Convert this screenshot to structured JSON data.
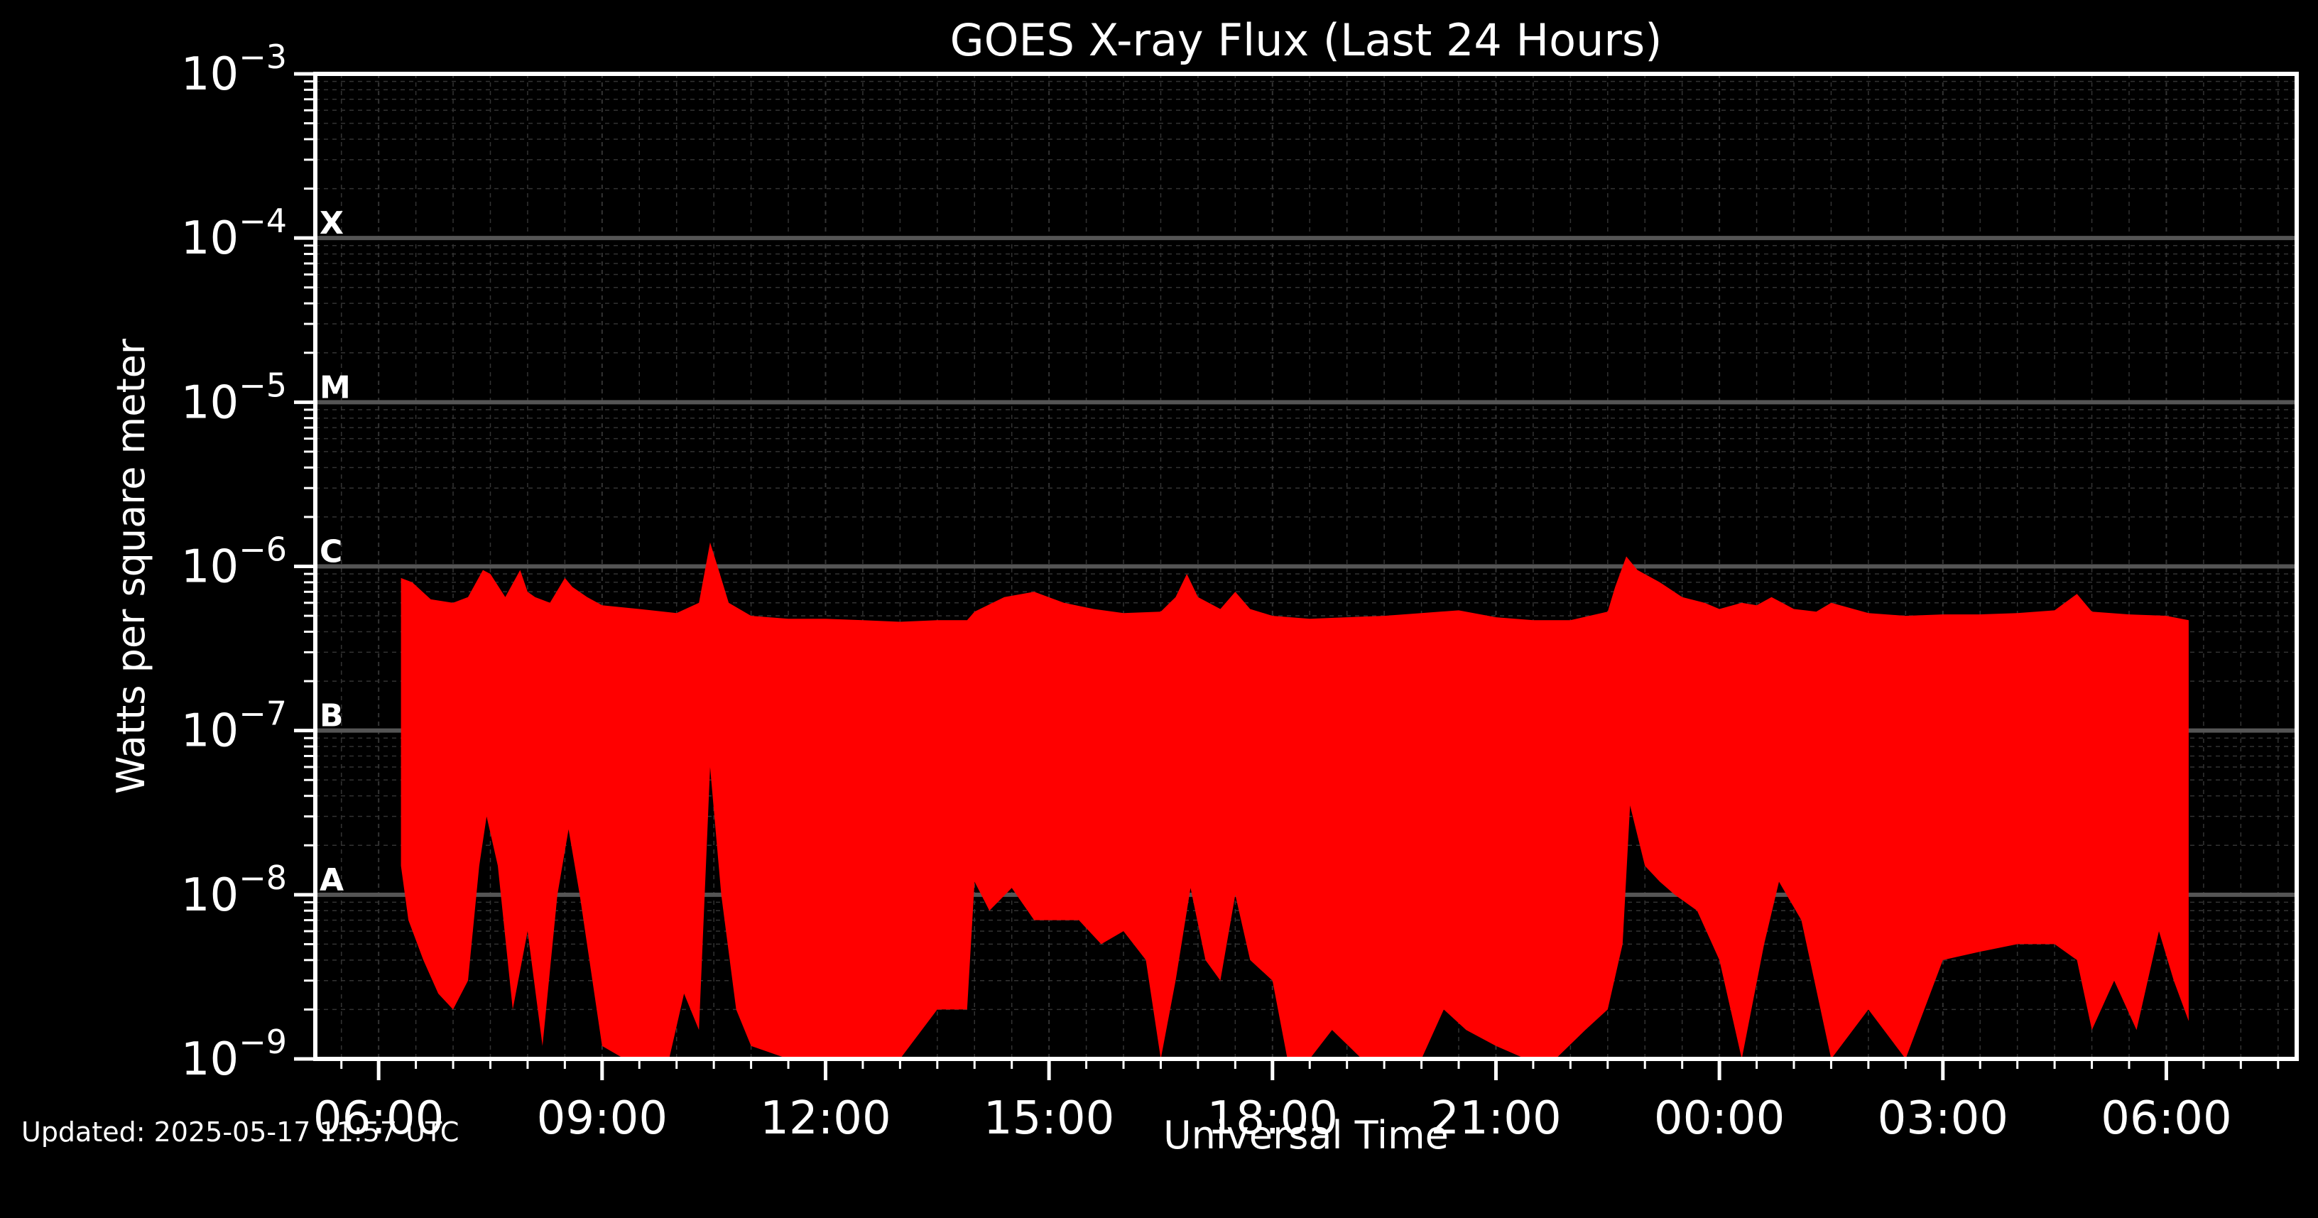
{
  "chart_data": {
    "type": "area",
    "title": "GOES X-ray Flux (Last 24 Hours)",
    "xlabel": "Universal Time",
    "ylabel": "Watts per square meter",
    "y_scale": "log",
    "ylim": [
      1e-09,
      0.001
    ],
    "x_unit": "hours since 2025-05-16 00:00 UTC",
    "xlim": [
      5.15,
      31.75
    ],
    "x_ticks": [
      {
        "x": 6,
        "label": "06:00"
      },
      {
        "x": 9,
        "label": "09:00"
      },
      {
        "x": 12,
        "label": "12:00"
      },
      {
        "x": 15,
        "label": "15:00"
      },
      {
        "x": 18,
        "label": "18:00"
      },
      {
        "x": 21,
        "label": "21:00"
      },
      {
        "x": 24,
        "label": "00:00"
      },
      {
        "x": 27,
        "label": "03:00"
      },
      {
        "x": 30,
        "label": "06:00"
      }
    ],
    "y_ticks": [
      {
        "exp": -9,
        "base": "10",
        "sup": "−9"
      },
      {
        "exp": -8,
        "base": "10",
        "sup": "−8"
      },
      {
        "exp": -7,
        "base": "10",
        "sup": "−7"
      },
      {
        "exp": -6,
        "base": "10",
        "sup": "−6"
      },
      {
        "exp": -5,
        "base": "10",
        "sup": "−5"
      },
      {
        "exp": -4,
        "base": "10",
        "sup": "−4"
      },
      {
        "exp": -3,
        "base": "10",
        "sup": "−3"
      }
    ],
    "flare_classes": [
      {
        "label": "A",
        "value": 1e-08
      },
      {
        "label": "B",
        "value": 1e-07
      },
      {
        "label": "C",
        "value": 1e-06
      },
      {
        "label": "M",
        "value": 1e-05
      },
      {
        "label": "X",
        "value": 0.0001
      }
    ],
    "grid": true,
    "colors": {
      "fill": "#ff0000",
      "background": "#000000",
      "axes": "#ffffff",
      "class_lines": "#555555",
      "grid": "#333333"
    },
    "series": [
      {
        "upper": {
          "x": [
            6.3,
            6.45,
            6.7,
            7.0,
            7.2,
            7.4,
            7.5,
            7.7,
            7.9,
            8.0,
            8.1,
            8.3,
            8.5,
            8.6,
            8.8,
            9.0,
            9.5,
            10.0,
            10.3,
            10.45,
            10.55,
            10.7,
            11.0,
            11.5,
            12.0,
            12.5,
            13.0,
            13.5,
            13.9,
            14.0,
            14.4,
            14.8,
            15.2,
            15.6,
            16.0,
            16.5,
            16.7,
            16.85,
            17.0,
            17.3,
            17.5,
            17.7,
            18.0,
            18.5,
            19.0,
            19.5,
            20.0,
            20.5,
            21.0,
            21.5,
            22.0,
            22.5,
            22.6,
            22.75,
            22.9,
            23.2,
            23.5,
            23.8,
            24.0,
            24.3,
            24.5,
            24.7,
            25.0,
            25.3,
            25.5,
            26.0,
            26.5,
            27.0,
            27.5,
            28.0,
            28.5,
            28.8,
            29.0,
            29.5,
            30.0,
            30.3
          ],
          "y": [
            8.5e-07,
            8e-07,
            6.3e-07,
            6e-07,
            6.5e-07,
            9.5e-07,
            9e-07,
            6.5e-07,
            9.5e-07,
            7e-07,
            6.5e-07,
            6e-07,
            8.5e-07,
            7.5e-07,
            6.5e-07,
            5.8e-07,
            5.5e-07,
            5.2e-07,
            6e-07,
            1.4e-06,
            1e-06,
            6e-07,
            5e-07,
            4.8e-07,
            4.8e-07,
            4.7e-07,
            4.6e-07,
            4.7e-07,
            4.7e-07,
            5.3e-07,
            6.5e-07,
            7e-07,
            6e-07,
            5.5e-07,
            5.2e-07,
            5.3e-07,
            6.5e-07,
            9e-07,
            6.5e-07,
            5.5e-07,
            7e-07,
            5.5e-07,
            5e-07,
            4.8e-07,
            4.9e-07,
            5e-07,
            5.2e-07,
            5.4e-07,
            4.9e-07,
            4.7e-07,
            4.7e-07,
            5.3e-07,
            7.5e-07,
            1.15e-06,
            9.5e-07,
            8e-07,
            6.5e-07,
            6e-07,
            5.5e-07,
            6e-07,
            5.8e-07,
            6.5e-07,
            5.5e-07,
            5.3e-07,
            6e-07,
            5.2e-07,
            5e-07,
            5.1e-07,
            5.1e-07,
            5.2e-07,
            5.4e-07,
            6.8e-07,
            5.3e-07,
            5.1e-07,
            5e-07,
            4.7e-07
          ]
        },
        "lower": {
          "x": [
            6.3,
            6.4,
            6.6,
            6.8,
            7.0,
            7.2,
            7.35,
            7.45,
            7.6,
            7.8,
            8.0,
            8.2,
            8.4,
            8.55,
            8.7,
            9.0,
            9.3,
            9.6,
            9.9,
            10.1,
            10.3,
            10.45,
            10.6,
            10.8,
            11.0,
            11.5,
            12.0,
            12.5,
            13.0,
            13.5,
            13.9,
            14.0,
            14.2,
            14.5,
            14.8,
            15.1,
            15.4,
            15.7,
            16.0,
            16.3,
            16.5,
            16.7,
            16.9,
            17.1,
            17.3,
            17.5,
            17.7,
            18.0,
            18.2,
            18.5,
            18.8,
            19.2,
            19.6,
            20.0,
            20.3,
            20.6,
            21.0,
            21.4,
            21.8,
            22.2,
            22.5,
            22.7,
            22.8,
            23.0,
            23.2,
            23.4,
            23.7,
            24.0,
            24.3,
            24.6,
            24.8,
            25.1,
            25.5,
            26.0,
            26.5,
            27.0,
            27.5,
            28.0,
            28.5,
            28.8,
            29.0,
            29.3,
            29.6,
            29.9,
            30.1,
            30.3
          ],
          "y": [
            1.5e-08,
            7e-09,
            4e-09,
            2.5e-09,
            2e-09,
            3e-09,
            1.5e-08,
            3e-08,
            1.5e-08,
            2e-09,
            6e-09,
            1.2e-09,
            1e-08,
            2.5e-08,
            1e-08,
            1.2e-09,
            1e-09,
            1e-09,
            1e-09,
            2.5e-09,
            1.5e-09,
            6e-08,
            1e-08,
            2e-09,
            1.2e-09,
            1e-09,
            1e-09,
            1e-09,
            1e-09,
            2e-09,
            2e-09,
            1.2e-08,
            8e-09,
            1.1e-08,
            7e-09,
            7e-09,
            7e-09,
            5e-09,
            6e-09,
            4e-09,
            1e-09,
            3e-09,
            1.1e-08,
            4e-09,
            3e-09,
            1e-08,
            4e-09,
            3e-09,
            1e-09,
            1e-09,
            1.5e-09,
            1e-09,
            1e-09,
            1e-09,
            2e-09,
            1.5e-09,
            1.2e-09,
            1e-09,
            1e-09,
            1.5e-09,
            2e-09,
            5e-09,
            3.5e-08,
            1.5e-08,
            1.2e-08,
            1e-08,
            8e-09,
            4e-09,
            1e-09,
            5e-09,
            1.2e-08,
            7e-09,
            1e-09,
            2e-09,
            1e-09,
            4e-09,
            4.5e-09,
            5e-09,
            5e-09,
            4e-09,
            1.5e-09,
            3e-09,
            1.5e-09,
            6e-09,
            3e-09,
            1.7e-09
          ]
        }
      }
    ]
  },
  "footer": {
    "updated": "Updated: 2025-05-17 11:57 UTC"
  }
}
